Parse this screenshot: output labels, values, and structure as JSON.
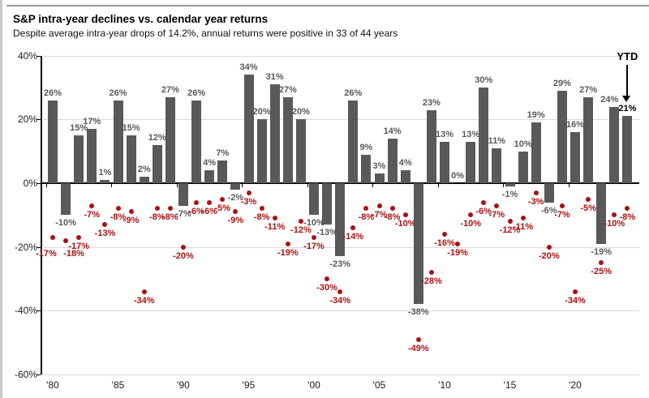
{
  "header": {
    "title": "S&P intra-year declines vs. calendar year returns",
    "subtitle": "Despite average intra-year drops of 14.2%, annual returns were positive in 33 of 44 years"
  },
  "chart_data": {
    "type": "bar",
    "title": "S&P intra-year declines vs. calendar year returns",
    "subtitle": "Despite average intra-year drops of 14.2%, annual returns were positive in 33 of 44 years",
    "series": [
      {
        "name": "Calendar year return",
        "type": "bar",
        "color": "#595959"
      },
      {
        "name": "Intra-year decline",
        "type": "scatter",
        "color": "#aa1111"
      }
    ],
    "years": [
      {
        "year": 1980,
        "return": 26,
        "decline": -17
      },
      {
        "year": 1981,
        "return": -10,
        "decline": -18
      },
      {
        "year": 1982,
        "return": 15,
        "decline": -17
      },
      {
        "year": 1983,
        "return": 17,
        "decline": -7
      },
      {
        "year": 1984,
        "return": 1,
        "decline": -13
      },
      {
        "year": 1985,
        "return": 26,
        "decline": -8
      },
      {
        "year": 1986,
        "return": 15,
        "decline": -9
      },
      {
        "year": 1987,
        "return": 2,
        "decline": -34
      },
      {
        "year": 1988,
        "return": 12,
        "decline": -8
      },
      {
        "year": 1989,
        "return": 27,
        "decline": -8
      },
      {
        "year": 1990,
        "return": -7,
        "decline": -20
      },
      {
        "year": 1991,
        "return": 26,
        "decline": -6
      },
      {
        "year": 1992,
        "return": 4,
        "decline": -6
      },
      {
        "year": 1993,
        "return": 7,
        "decline": -5
      },
      {
        "year": 1994,
        "return": -2,
        "decline": -9
      },
      {
        "year": 1995,
        "return": 34,
        "decline": -3
      },
      {
        "year": 1996,
        "return": 20,
        "decline": -8
      },
      {
        "year": 1997,
        "return": 31,
        "decline": -11
      },
      {
        "year": 1998,
        "return": 27,
        "decline": -19
      },
      {
        "year": 1999,
        "return": 20,
        "decline": -12
      },
      {
        "year": 2000,
        "return": -10,
        "decline": -17
      },
      {
        "year": 2001,
        "return": -13,
        "decline": -30
      },
      {
        "year": 2002,
        "return": -23,
        "decline": -34
      },
      {
        "year": 2003,
        "return": 26,
        "decline": -14
      },
      {
        "year": 2004,
        "return": 9,
        "decline": -8
      },
      {
        "year": 2005,
        "return": 3,
        "decline": -7
      },
      {
        "year": 2006,
        "return": 14,
        "decline": -8
      },
      {
        "year": 2007,
        "return": 4,
        "decline": -10
      },
      {
        "year": 2008,
        "return": -38,
        "decline": -49
      },
      {
        "year": 2009,
        "return": 23,
        "decline": -28
      },
      {
        "year": 2010,
        "return": 13,
        "decline": -16
      },
      {
        "year": 2011,
        "return": 0,
        "decline": -19
      },
      {
        "year": 2012,
        "return": 13,
        "decline": -10
      },
      {
        "year": 2013,
        "return": 30,
        "decline": -6
      },
      {
        "year": 2014,
        "return": 11,
        "decline": -7
      },
      {
        "year": 2015,
        "return": -1,
        "decline": -12
      },
      {
        "year": 2016,
        "return": 10,
        "decline": -11
      },
      {
        "year": 2017,
        "return": 19,
        "decline": -3
      },
      {
        "year": 2018,
        "return": -6,
        "decline": -20
      },
      {
        "year": 2019,
        "return": 29,
        "decline": -7
      },
      {
        "year": 2020,
        "return": 16,
        "decline": -34
      },
      {
        "year": 2021,
        "return": 27,
        "decline": -5
      },
      {
        "year": 2022,
        "return": -19,
        "decline": -25
      },
      {
        "year": 2023,
        "return": 24,
        "decline": -10
      },
      {
        "year": 2024,
        "return": 21,
        "decline": -8,
        "ytd": true
      }
    ],
    "y_axis": {
      "ticks": [
        40,
        20,
        0,
        -20,
        -40,
        -60
      ],
      "tick_labels": [
        "40%",
        "20%",
        "0%",
        "-20%",
        "-40%",
        "-60%"
      ],
      "ylim": [
        -60,
        40
      ]
    },
    "x_axis": {
      "tick_years": [
        1980,
        1985,
        1990,
        1995,
        2000,
        2005,
        2010,
        2015,
        2020
      ],
      "tick_labels": [
        "'80",
        "'85",
        "'90",
        "'95",
        "'00",
        "'05",
        "'10",
        "'15",
        "'20"
      ]
    },
    "annotations": {
      "ytd_label": "YTD"
    },
    "layout": {
      "grid": true,
      "legend": "none",
      "dot_label_offsets": {
        "1980": [
          -8,
          9
        ],
        "1981": [
          10,
          5
        ]
      },
      "bar_label_offsets": {
        "2023": [
          -6,
          0
        ]
      }
    },
    "colors": {
      "bar": "#595959",
      "dot": "#aa1111",
      "gridline": "#d9d9d9",
      "axis": "#000000",
      "ytd_text": "#000000"
    }
  }
}
